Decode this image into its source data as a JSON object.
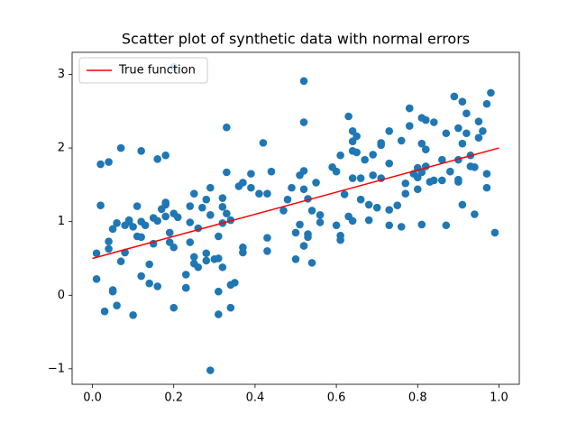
{
  "chart_data": {
    "type": "scatter",
    "title": "Scatter plot of synthetic data with normal errors",
    "xlim": [
      -0.05,
      1.05
    ],
    "ylim": [
      -1.21,
      3.3
    ],
    "xticks": [
      {
        "value": 0,
        "label": "0.0"
      },
      {
        "value": 0.2,
        "label": "0.2"
      },
      {
        "value": 0.4,
        "label": "0.4"
      },
      {
        "value": 0.6,
        "label": "0.6"
      },
      {
        "value": 0.8,
        "label": "0.8"
      },
      {
        "value": 1,
        "label": "1.0"
      }
    ],
    "yticks": [
      {
        "value": -1,
        "label": "−1"
      },
      0,
      1,
      2,
      3
    ],
    "legend": "upper left",
    "series": [
      {
        "name": "True function",
        "type": "line",
        "color": "#ff0000",
        "x": [
          0,
          1
        ],
        "values": [
          0.5,
          2
        ]
      },
      {
        "type": "scatter",
        "color": "#1f77b4",
        "x": [
          0.01,
          0.01,
          0.02,
          0.02,
          0.03,
          0.04,
          0.04,
          0.04,
          0.05,
          0.05,
          0.05,
          0.06,
          0.06,
          0.07,
          0.07,
          0.08,
          0.08,
          0.09,
          0.09,
          0.1,
          0.1,
          0.11,
          0.11,
          0.12,
          0.12,
          0.12,
          0.12,
          0.13,
          0.14,
          0.14,
          0.15,
          0.15,
          0.16,
          0.16,
          0.16,
          0.17,
          0.18,
          0.18,
          0.18,
          0.18,
          0.19,
          0.19,
          0.2,
          0.2,
          0.2,
          0.2,
          0.21,
          0.23,
          0.23,
          0.23,
          0.24,
          0.24,
          0.24,
          0.25,
          0.25,
          0.25,
          0.26,
          0.26,
          0.27,
          0.28,
          0.28,
          0.28,
          0.29,
          0.29,
          0.29,
          0.3,
          0.31,
          0.31,
          0.31,
          0.31,
          0.32,
          0.32,
          0.32,
          0.32,
          0.33,
          0.33,
          0.33,
          0.34,
          0.34,
          0.34,
          0.35,
          0.36,
          0.37,
          0.37,
          0.37,
          0.39,
          0.39,
          0.41,
          0.42,
          0.43,
          0.43,
          0.43,
          0.44,
          0.47,
          0.48,
          0.49,
          0.5,
          0.5,
          0.51,
          0.51,
          0.52,
          0.52,
          0.52,
          0.52,
          0.52,
          0.53,
          0.53,
          0.53,
          0.54,
          0.54,
          0.55,
          0.56,
          0.56,
          0.59,
          0.6,
          0.6,
          0.61,
          0.61,
          0.61,
          0.62,
          0.63,
          0.63,
          0.64,
          0.64,
          0.64,
          0.64,
          0.64,
          0.65,
          0.65,
          0.66,
          0.66,
          0.67,
          0.68,
          0.68,
          0.69,
          0.69,
          0.7,
          0.71,
          0.71,
          0.71,
          0.73,
          0.73,
          0.73,
          0.73,
          0.75,
          0.76,
          0.76,
          0.77,
          0.77,
          0.78,
          0.78,
          0.78,
          0.79,
          0.8,
          0.8,
          0.8,
          0.81,
          0.81,
          0.81,
          0.81,
          0.82,
          0.82,
          0.82,
          0.83,
          0.84,
          0.84,
          0.86,
          0.86,
          0.87,
          0.87,
          0.88,
          0.89,
          0.9,
          0.9,
          0.9,
          0.9,
          0.91,
          0.91,
          0.91,
          0.92,
          0.92,
          0.93,
          0.93,
          0.94,
          0.94,
          0.95,
          0.95,
          0.96,
          0.97,
          0.97,
          0.97,
          0.98,
          0.99
        ],
        "values": [
          0.22,
          0.57,
          1.78,
          1.22,
          -0.22,
          1.81,
          0.73,
          0.63,
          0.9,
          0.05,
          0.07,
          -0.14,
          0.98,
          0.46,
          2.0,
          0.58,
          0.95,
          1.0,
          1.02,
          -0.27,
          0.93,
          1.21,
          0.8,
          0.26,
          1.0,
          1.96,
          0.79,
          0.95,
          0.42,
          0.16,
          1.05,
          0.7,
          1.85,
          1.01,
          0.12,
          1.17,
          1.07,
          1.23,
          1.9,
          1.26,
          0.85,
          0.72,
          3.1,
          0.65,
          -0.17,
          1.11,
          1.06,
          0.28,
          0.1,
          0.1,
          0.99,
          0.72,
          1.21,
          0.52,
          1.38,
          0.43,
          0.38,
          0.91,
          1.19,
          1.3,
          0.57,
          0.47,
          1.46,
          -1.02,
          1.09,
          0.49,
          0.8,
          0.5,
          -0.26,
          0.05,
          0.38,
          1.2,
          1.32,
          0.98,
          1.67,
          1.11,
          2.28,
          1.02,
          -0.17,
          0.14,
          0.17,
          1.48,
          0.58,
          1.53,
          0.65,
          1.65,
          1.46,
          1.38,
          2.07,
          1.38,
          0.78,
          0.6,
          1.68,
          1.15,
          1.3,
          1.46,
          0.85,
          0.49,
          1.63,
          0.96,
          0.67,
          2.91,
          1.44,
          1.69,
          2.35,
          0.83,
          0.79,
          1.31,
          0.44,
          1.15,
          1.53,
          0.99,
          1.09,
          1.74,
          1.68,
          0.95,
          0.81,
          0.75,
          1.9,
          1.37,
          1.07,
          2.43,
          2.23,
          1.96,
          1.59,
          2.09,
          1.01,
          1.94,
          2.16,
          1.3,
          1.59,
          1.84,
          1.02,
          1.23,
          1.63,
          1.91,
          1.19,
          1.59,
          2.04,
          2.07,
          2.23,
          1.16,
          0.95,
          1.79,
          1.22,
          2.1,
          0.93,
          1.52,
          1.38,
          2.3,
          2.54,
          2.54,
          1.65,
          1.73,
          1.6,
          1.44,
          2.06,
          0.96,
          2.41,
          1.67,
          2.38,
          1.98,
          1.75,
          1.54,
          2.35,
          1.56,
          1.56,
          1.84,
          2.2,
          0.95,
          1.68,
          2.7,
          1.84,
          1.57,
          1.54,
          2.27,
          2.63,
          1.23,
          2.06,
          2.47,
          2.2,
          1.75,
          1.9,
          1.74,
          1.1,
          2.14,
          2.36,
          2.23,
          2.6,
          1.46,
          1.65,
          2.75,
          0.85
        ]
      }
    ]
  }
}
